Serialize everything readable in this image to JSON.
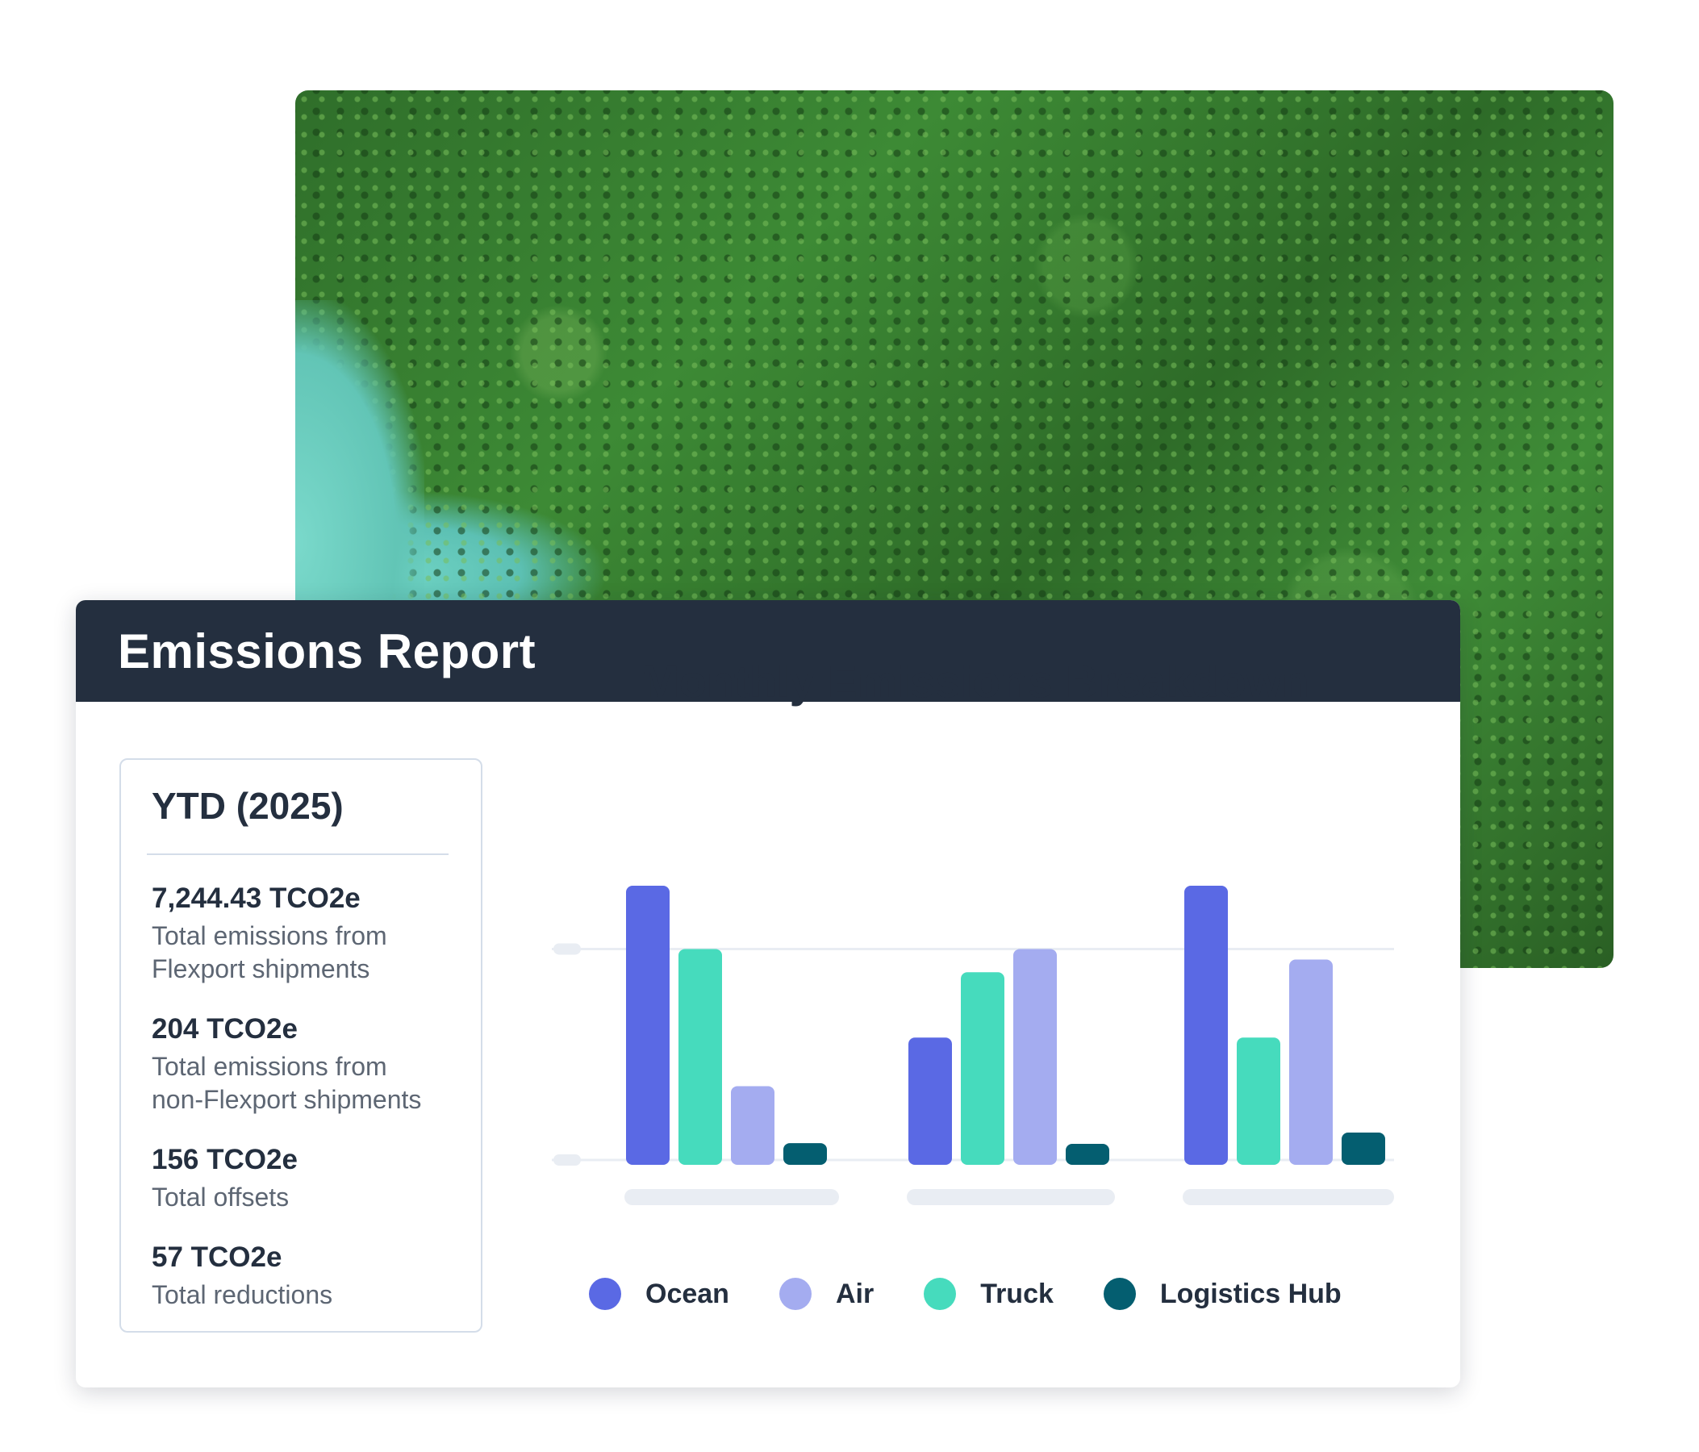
{
  "photo": {
    "description_icon": "forest-photo"
  },
  "report": {
    "title": "Emissions Report"
  },
  "ytd": {
    "title": "YTD (2025)",
    "stats": [
      {
        "value": "7,244.43 TCO2e",
        "label_line1": "Total emissions from",
        "label_line2": "Flexport shipments"
      },
      {
        "value": "204 TCO2e",
        "label_line1": "Total emissions from",
        "label_line2": "non-Flexport shipments"
      },
      {
        "value": "156 TCO2e",
        "label_line1": "Total offsets",
        "label_line2": ""
      },
      {
        "value": "57 TCO2e",
        "label_line1": "Total reductions",
        "label_line2": ""
      }
    ]
  },
  "colors": {
    "Ocean": "#5a69e4",
    "Air": "#a4acf0",
    "Truck": "#46dbbd",
    "Logistics Hub": "#045e70"
  },
  "chart_data": {
    "type": "bar",
    "title": "Monthly Emissions Breakdown",
    "categories": [
      "",
      "",
      ""
    ],
    "ylim": [
      0,
      1.3
    ],
    "grid": true,
    "legend_position": "bottom",
    "series": [
      {
        "name": "Ocean",
        "values": [
          1.3,
          0.58,
          1.3
        ]
      },
      {
        "name": "Truck",
        "values": [
          1.0,
          0.89,
          0.58
        ]
      },
      {
        "name": "Air",
        "values": [
          0.35,
          1.0,
          0.95
        ]
      },
      {
        "name": "Logistics Hub",
        "values": [
          0.08,
          0.04,
          0.13
        ]
      }
    ],
    "legend": [
      "Ocean",
      "Air",
      "Truck",
      "Logistics Hub"
    ]
  }
}
